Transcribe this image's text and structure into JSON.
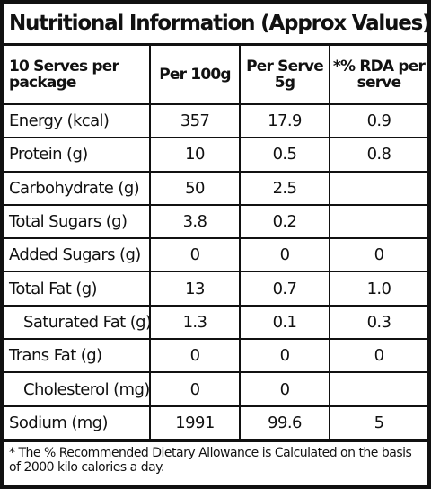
{
  "title": "Nutritional Information (Approx Values)",
  "table": {
    "header": [
      "10 Serves per package",
      "Per 100g",
      "Per Serve 5g",
      "*% RDA per serve"
    ],
    "rows": [
      [
        "Energy (kcal)",
        "357",
        "17.9",
        "0.9"
      ],
      [
        "Protein (g)",
        "10",
        "0.5",
        "0.8"
      ],
      [
        "Carbohydrate (g)",
        "50",
        "2.5",
        null
      ],
      [
        "Total Sugars (g)",
        "3.8",
        "0.2",
        null
      ],
      [
        "Added Sugars (g)",
        "0",
        "0",
        "0"
      ],
      [
        "Total Fat (g)",
        "13",
        "0.7",
        "1.0"
      ],
      [
        "Saturated Fat (g)",
        "1.3",
        "0.1",
        "0.3"
      ],
      [
        "Trans Fat (g)",
        "0",
        "0",
        "0"
      ],
      [
        "Cholesterol (mg)",
        "0",
        "0",
        null
      ],
      [
        "Sodium (mg)",
        "1991",
        "99.6",
        "5"
      ]
    ],
    "indented_rows": [
      6,
      8
    ]
  },
  "footnote": "* The % Recommended Dietary Allowance is Calculated on the basis of 2000 kilo calories a day."
}
